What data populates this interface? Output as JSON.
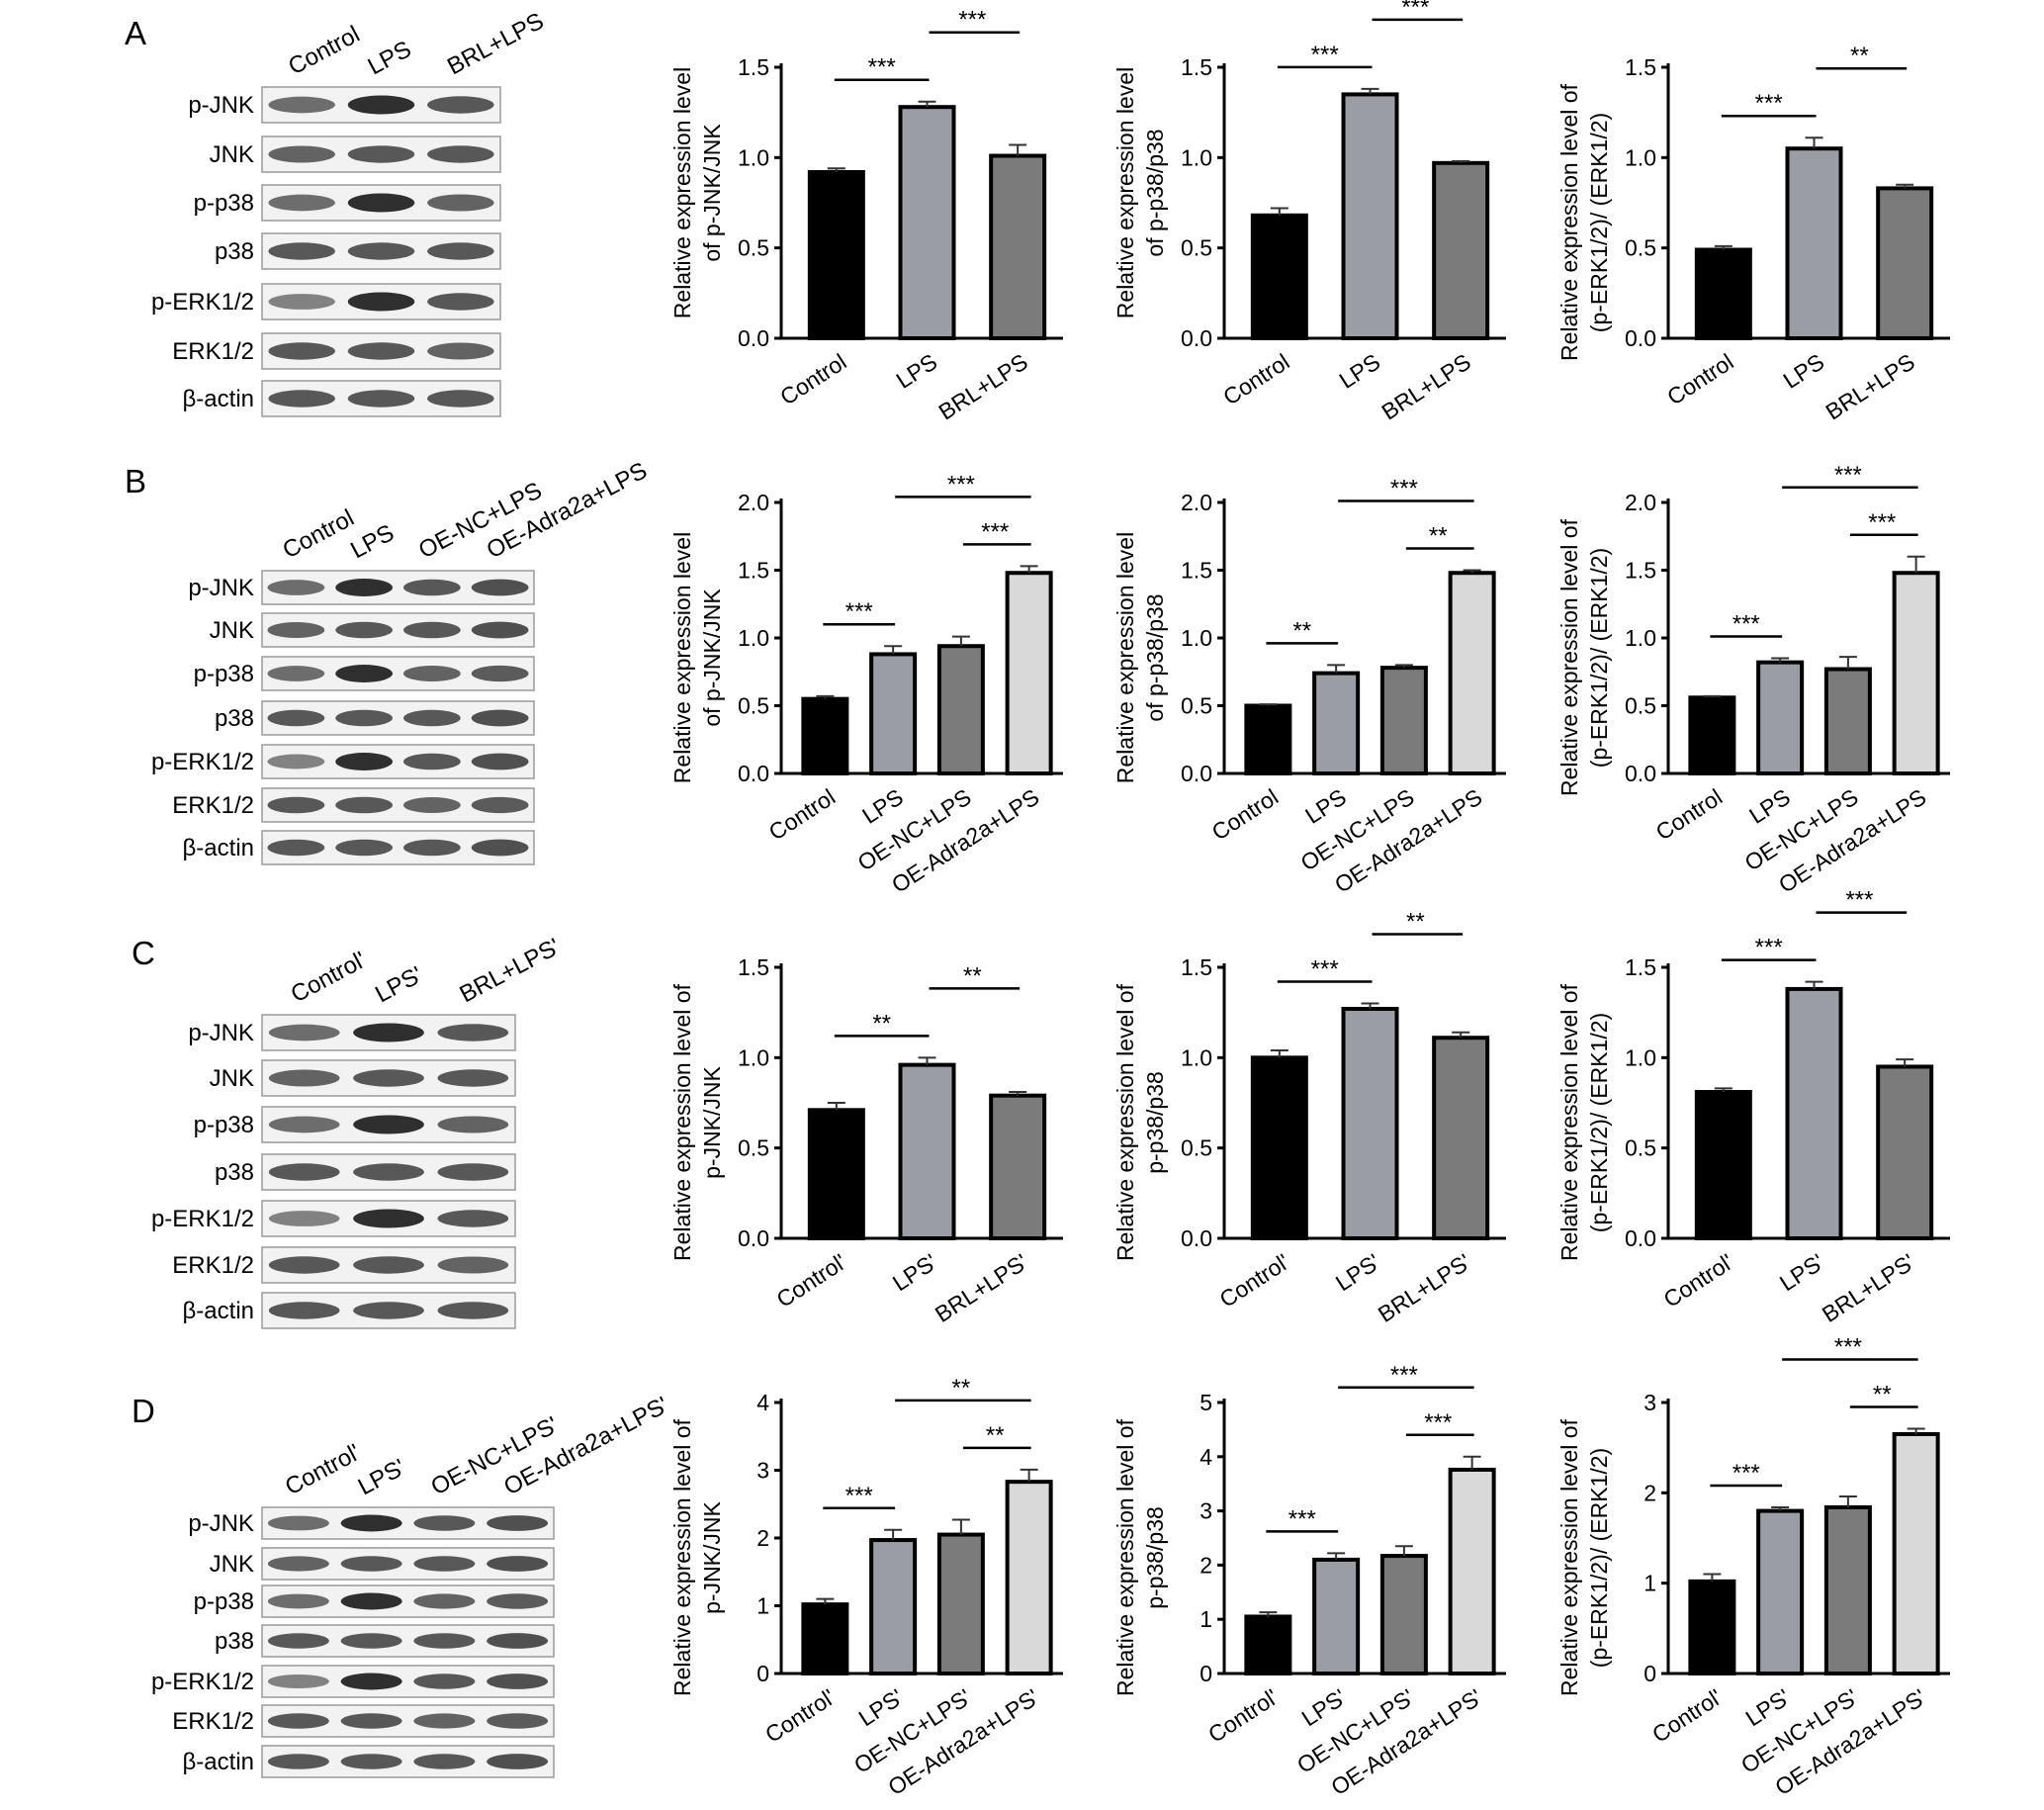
{
  "panels": [
    {
      "letter": "A",
      "lanes": [
        "Control",
        "LPS",
        "BRL+LPS"
      ],
      "rows": [
        "p-JNK",
        "JNK",
        "p-p38",
        "p38",
        "p-ERK1/2",
        "ERK1/2",
        "β-actin"
      ]
    },
    {
      "letter": "B",
      "lanes": [
        "Control",
        "LPS",
        "OE-NC+LPS",
        "OE-Adra2a+LPS"
      ],
      "rows": [
        "p-JNK",
        "JNK",
        "p-p38",
        "p38",
        "p-ERK1/2",
        "ERK1/2",
        "β-actin"
      ]
    },
    {
      "letter": "C",
      "lanes": [
        "Control'",
        "LPS'",
        "BRL+LPS'"
      ],
      "rows": [
        "p-JNK",
        "JNK",
        "p-p38",
        "p38",
        "p-ERK1/2",
        "ERK1/2",
        "β-actin"
      ]
    },
    {
      "letter": "D",
      "lanes": [
        "Control'",
        "LPS'",
        "OE-NC+LPS'",
        "OE-Adra2a+LPS'"
      ],
      "rows": [
        "p-JNK",
        "JNK",
        "p-p38",
        "p38",
        "p-ERK1/2",
        "ERK1/2",
        "β-actin"
      ]
    }
  ],
  "colors": {
    "bar1": "#000000",
    "bar2": "#9b9da4",
    "bar3": "#7b7b7b",
    "bar4": "#d9d9d9"
  },
  "chart_data": [
    {
      "type": "bar",
      "panel": "A",
      "ylabel": [
        "Relative expression level",
        "of p-JNK/JNK"
      ],
      "ylim": [
        0,
        1.5
      ],
      "ticks": [
        "0.0",
        "0.5",
        "1.0",
        "1.5"
      ],
      "tick_values": [
        0,
        0.5,
        1,
        1.5
      ],
      "categories": [
        "Control",
        "LPS",
        "BRL+LPS"
      ],
      "values": [
        0.92,
        1.28,
        1.01
      ],
      "errors": [
        0.02,
        0.03,
        0.06
      ],
      "significance": [
        {
          "from": 0,
          "to": 1,
          "label": "***"
        },
        {
          "from": 1,
          "to": 2,
          "label": "***"
        }
      ]
    },
    {
      "type": "bar",
      "panel": "A",
      "ylabel": [
        "Relative expression level",
        "of p-p38/p38"
      ],
      "ylim": [
        0,
        1.5
      ],
      "ticks": [
        "0.0",
        "0.5",
        "1.0",
        "1.5"
      ],
      "tick_values": [
        0,
        0.5,
        1,
        1.5
      ],
      "categories": [
        "Control",
        "LPS",
        "BRL+LPS"
      ],
      "values": [
        0.68,
        1.35,
        0.97
      ],
      "errors": [
        0.04,
        0.03,
        0.01
      ],
      "significance": [
        {
          "from": 0,
          "to": 1,
          "label": "***"
        },
        {
          "from": 1,
          "to": 2,
          "label": "***"
        }
      ]
    },
    {
      "type": "bar",
      "panel": "A",
      "ylabel": [
        "Relative expression level of",
        "(p-ERK1/2)/ (ERK1/2)"
      ],
      "ylim": [
        0,
        1.5
      ],
      "ticks": [
        "0.0",
        "0.5",
        "1.0",
        "1.5"
      ],
      "tick_values": [
        0,
        0.5,
        1,
        1.5
      ],
      "categories": [
        "Control",
        "LPS",
        "BRL+LPS"
      ],
      "values": [
        0.49,
        1.05,
        0.83
      ],
      "errors": [
        0.02,
        0.06,
        0.02
      ],
      "significance": [
        {
          "from": 0,
          "to": 1,
          "label": "***"
        },
        {
          "from": 1,
          "to": 2,
          "label": "**"
        }
      ]
    },
    {
      "type": "bar",
      "panel": "B",
      "ylabel": [
        "Relative expression level",
        "of p-JNK/JNK"
      ],
      "ylim": [
        0,
        2.0
      ],
      "ticks": [
        "0.0",
        "0.5",
        "1.0",
        "1.5",
        "2.0"
      ],
      "tick_values": [
        0,
        0.5,
        1,
        1.5,
        2
      ],
      "categories": [
        "Control",
        "LPS",
        "OE-NC+LPS",
        "OE-Adra2a+LPS"
      ],
      "values": [
        0.55,
        0.88,
        0.94,
        1.48
      ],
      "errors": [
        0.02,
        0.06,
        0.07,
        0.05
      ],
      "significance": [
        {
          "from": 0,
          "to": 1,
          "label": "***"
        },
        {
          "from": 2,
          "to": 3,
          "label": "***"
        },
        {
          "from": 1,
          "to": 3,
          "label": "***"
        }
      ]
    },
    {
      "type": "bar",
      "panel": "B",
      "ylabel": [
        "Relative expression level",
        "of p-p38/p38"
      ],
      "ylim": [
        0,
        2.0
      ],
      "ticks": [
        "0.0",
        "0.5",
        "1.0",
        "1.5",
        "2.0"
      ],
      "tick_values": [
        0,
        0.5,
        1,
        1.5,
        2
      ],
      "categories": [
        "Control",
        "LPS",
        "OE-NC+LPS",
        "OE-Adra2a+LPS"
      ],
      "values": [
        0.5,
        0.74,
        0.78,
        1.48
      ],
      "errors": [
        0.01,
        0.06,
        0.02,
        0.02
      ],
      "significance": [
        {
          "from": 0,
          "to": 1,
          "label": "**"
        },
        {
          "from": 2,
          "to": 3,
          "label": "**"
        },
        {
          "from": 1,
          "to": 3,
          "label": "***"
        }
      ]
    },
    {
      "type": "bar",
      "panel": "B",
      "ylabel": [
        "Relative expression level of",
        "(p-ERK1/2)/ (ERK1/2)"
      ],
      "ylim": [
        0,
        2.0
      ],
      "ticks": [
        "0.0",
        "0.5",
        "1.0",
        "1.5",
        "2.0"
      ],
      "tick_values": [
        0,
        0.5,
        1,
        1.5,
        2
      ],
      "categories": [
        "Control",
        "LPS",
        "OE-NC+LPS",
        "OE-Adra2a+LPS"
      ],
      "values": [
        0.56,
        0.82,
        0.77,
        1.48
      ],
      "errors": [
        0.01,
        0.03,
        0.09,
        0.12
      ],
      "significance": [
        {
          "from": 0,
          "to": 1,
          "label": "***"
        },
        {
          "from": 2,
          "to": 3,
          "label": "***"
        },
        {
          "from": 1,
          "to": 3,
          "label": "***"
        }
      ]
    },
    {
      "type": "bar",
      "panel": "C",
      "ylabel": [
        "Relative expression level of",
        "p-JNK/JNK"
      ],
      "ylim": [
        0,
        1.5
      ],
      "ticks": [
        "0.0",
        "0.5",
        "1.0",
        "1.5"
      ],
      "tick_values": [
        0,
        0.5,
        1,
        1.5
      ],
      "categories": [
        "Control'",
        "LPS'",
        "BRL+LPS'"
      ],
      "values": [
        0.71,
        0.96,
        0.79
      ],
      "errors": [
        0.04,
        0.04,
        0.02
      ],
      "significance": [
        {
          "from": 0,
          "to": 1,
          "label": "**"
        },
        {
          "from": 1,
          "to": 2,
          "label": "**"
        }
      ]
    },
    {
      "type": "bar",
      "panel": "C",
      "ylabel": [
        "Relative expression level of",
        "p-p38/p38"
      ],
      "ylim": [
        0,
        1.5
      ],
      "ticks": [
        "0.0",
        "0.5",
        "1.0",
        "1.5"
      ],
      "tick_values": [
        0,
        0.5,
        1,
        1.5
      ],
      "categories": [
        "Control'",
        "LPS'",
        "BRL+LPS'"
      ],
      "values": [
        1.0,
        1.27,
        1.11
      ],
      "errors": [
        0.04,
        0.03,
        0.03
      ],
      "significance": [
        {
          "from": 0,
          "to": 1,
          "label": "***"
        },
        {
          "from": 1,
          "to": 2,
          "label": "**"
        }
      ]
    },
    {
      "type": "bar",
      "panel": "C",
      "ylabel": [
        "Relative expression level of",
        "(p-ERK1/2)/ (ERK1/2)"
      ],
      "ylim": [
        0,
        1.5
      ],
      "ticks": [
        "0.0",
        "0.5",
        "1.0",
        "1.5"
      ],
      "tick_values": [
        0,
        0.5,
        1,
        1.5
      ],
      "categories": [
        "Control'",
        "LPS'",
        "BRL+LPS'"
      ],
      "values": [
        0.81,
        1.38,
        0.95
      ],
      "errors": [
        0.02,
        0.04,
        0.04
      ],
      "significance": [
        {
          "from": 0,
          "to": 1,
          "label": "***"
        },
        {
          "from": 1,
          "to": 2,
          "label": "***"
        }
      ]
    },
    {
      "type": "bar",
      "panel": "D",
      "ylabel": [
        "Relative expression level of",
        "p-JNK/JNK"
      ],
      "ylim": [
        0,
        4
      ],
      "ticks": [
        "0",
        "1",
        "2",
        "3",
        "4"
      ],
      "tick_values": [
        0,
        1,
        2,
        3,
        4
      ],
      "categories": [
        "Control'",
        "LPS'",
        "OE-NC+LPS'",
        "OE-Adra2a+LPS'"
      ],
      "values": [
        1.02,
        1.97,
        2.05,
        2.83
      ],
      "errors": [
        0.08,
        0.15,
        0.22,
        0.18
      ],
      "significance": [
        {
          "from": 0,
          "to": 1,
          "label": "***"
        },
        {
          "from": 2,
          "to": 3,
          "label": "**"
        },
        {
          "from": 1,
          "to": 3,
          "label": "**"
        }
      ]
    },
    {
      "type": "bar",
      "panel": "D",
      "ylabel": [
        "Relative expression level of",
        "p-p38/p38"
      ],
      "ylim": [
        0,
        5
      ],
      "ticks": [
        "0",
        "1",
        "2",
        "3",
        "4",
        "5"
      ],
      "tick_values": [
        0,
        1,
        2,
        3,
        4,
        5
      ],
      "categories": [
        "Control'",
        "LPS'",
        "OE-NC+LPS'",
        "OE-Adra2a+LPS'"
      ],
      "values": [
        1.05,
        2.1,
        2.17,
        3.76
      ],
      "errors": [
        0.08,
        0.12,
        0.18,
        0.24
      ],
      "significance": [
        {
          "from": 0,
          "to": 1,
          "label": "***"
        },
        {
          "from": 2,
          "to": 3,
          "label": "***"
        },
        {
          "from": 1,
          "to": 3,
          "label": "***"
        }
      ]
    },
    {
      "type": "bar",
      "panel": "D",
      "ylabel": [
        "Relative expression level of",
        "(p-ERK1/2)/ (ERK1/2)"
      ],
      "ylim": [
        0,
        3
      ],
      "ticks": [
        "0",
        "1",
        "2",
        "3"
      ],
      "tick_values": [
        0,
        1,
        2,
        3
      ],
      "categories": [
        "Control'",
        "LPS'",
        "OE-NC+LPS'",
        "OE-Adra2a+LPS'"
      ],
      "values": [
        1.02,
        1.8,
        1.84,
        2.65
      ],
      "errors": [
        0.08,
        0.04,
        0.12,
        0.06
      ],
      "significance": [
        {
          "from": 0,
          "to": 1,
          "label": "***"
        },
        {
          "from": 2,
          "to": 3,
          "label": "**"
        },
        {
          "from": 1,
          "to": 3,
          "label": "***"
        }
      ]
    }
  ]
}
